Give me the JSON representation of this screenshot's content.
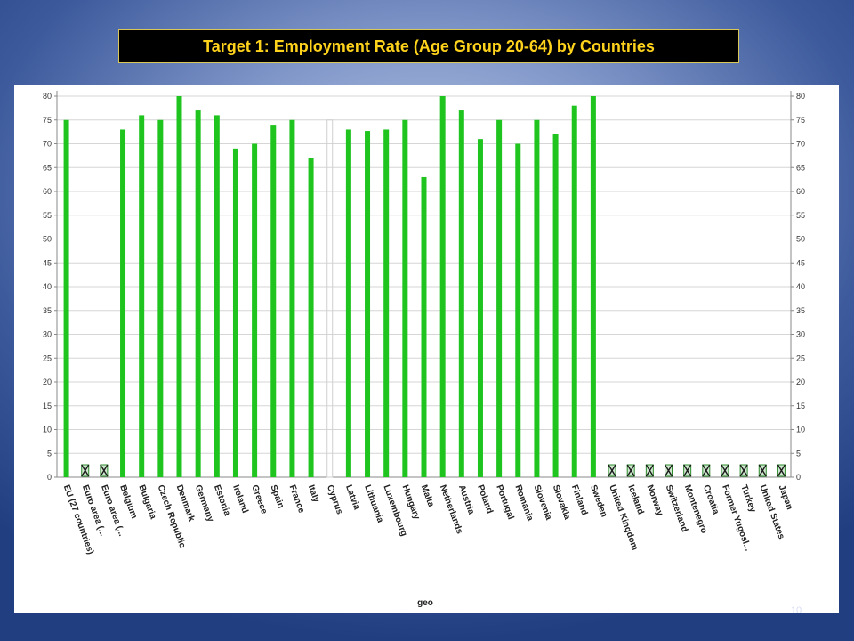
{
  "slide": {
    "title": "Target 1: Employment Rate (Age Group 20-64) by Countries",
    "slide_number": "10"
  },
  "chart_data": {
    "type": "bar",
    "title": "Target 1: Employment Rate (Age Group 20-64) by Countries",
    "xlabel": "geo",
    "ylabel": "",
    "ylim": [
      0,
      80
    ],
    "yticks": [
      0,
      5,
      10,
      15,
      20,
      25,
      30,
      35,
      40,
      45,
      50,
      55,
      60,
      65,
      70,
      75,
      80
    ],
    "grid": true,
    "dual_y_axis": true,
    "bar_color": "#1fc41f",
    "missing_marker_color": "#2e8b2e",
    "categories": [
      "EU (27 countries)",
      "Euro area (...",
      "Euro area (...",
      "Belgium",
      "Bulgaria",
      "Czech Republic",
      "Denmark",
      "Germany",
      "Estonia",
      "Ireland",
      "Greece",
      "Spain",
      "France",
      "Italy",
      "Cyprus",
      "Latvia",
      "Lithuania",
      "Luxembourg",
      "Hungary",
      "Malta",
      "Netherlands",
      "Austria",
      "Poland",
      "Portugal",
      "Romania",
      "Slovenia",
      "Slovakia",
      "Finland",
      "Sweden",
      "United Kingdom",
      "Iceland",
      "Norway",
      "Switzerland",
      "Montenegro",
      "Croatia",
      "Former Yugosl...",
      "Turkey",
      "United States",
      "Japan"
    ],
    "values": [
      75,
      null,
      null,
      73,
      76,
      75,
      80,
      77,
      76,
      69,
      70,
      74,
      75,
      67,
      75,
      73,
      72.7,
      73,
      75,
      63,
      80,
      77,
      71,
      75,
      70,
      75,
      72,
      78,
      80,
      null,
      null,
      null,
      null,
      null,
      null,
      null,
      null,
      null,
      null
    ],
    "value_styles": [
      "bar",
      "missing",
      "missing",
      "bar",
      "bar",
      "bar",
      "bar",
      "bar",
      "bar",
      "bar",
      "bar",
      "bar",
      "bar",
      "bar",
      "outline",
      "bar",
      "bar",
      "bar",
      "bar",
      "bar",
      "bar",
      "bar",
      "bar",
      "bar",
      "bar",
      "bar",
      "bar",
      "bar",
      "bar",
      "missing",
      "missing",
      "missing",
      "missing",
      "missing",
      "missing",
      "missing",
      "missing",
      "missing",
      "missing"
    ]
  }
}
